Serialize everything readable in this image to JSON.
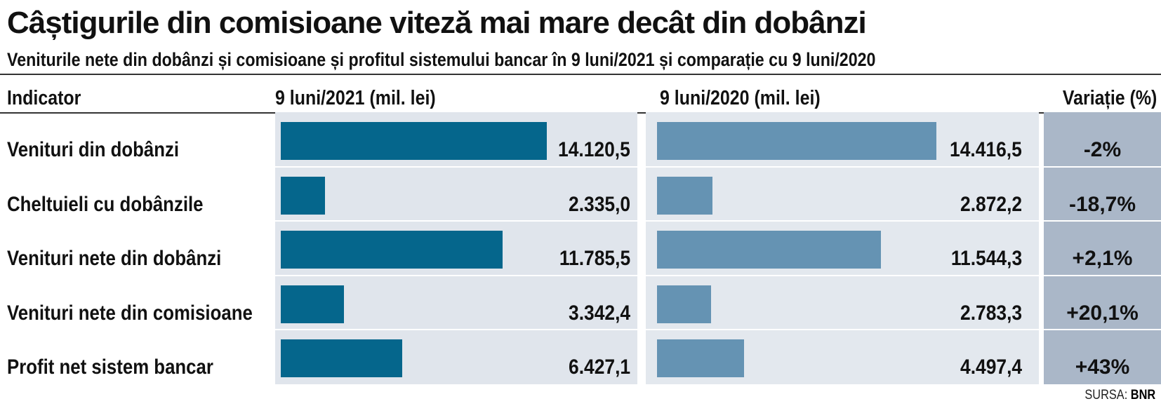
{
  "chart_data": {
    "type": "bar",
    "title": "Câștigurile din comisioane viteză mai mare decât din dobânzi",
    "subtitle": "Veniturile nete din dobânzi și comisioane și profitul sistemului bancar în 9 luni/2021 și comparație cu 9 luni/2020",
    "columns": {
      "indicator": "Indicator",
      "y2021": "9 luni/2021 (mil. lei)",
      "y2020": "9 luni/2020 (mil. lei)",
      "variation": "Variație (%)"
    },
    "categories": [
      "Venituri din dobânzi",
      "Cheltuieli cu dobânzile",
      "Venituri nete din dobânzi",
      "Venituri nete din comisioane",
      "Profit net sistem bancar"
    ],
    "series": [
      {
        "name": "9 luni/2021 (mil. lei)",
        "values": [
          14120.5,
          2335.0,
          11785.5,
          3342.4,
          6427.1
        ],
        "labels": [
          "14.120,5",
          "2.335,0",
          "11.785,5",
          "3.342,4",
          "6.427,1"
        ],
        "color": "#05668c"
      },
      {
        "name": "9 luni/2020 (mil. lei)",
        "values": [
          14416.5,
          2872.2,
          11544.3,
          2783.3,
          4497.4
        ],
        "labels": [
          "14.416,5",
          "2.872,2",
          "11.544,3",
          "2.783,3",
          "4.497,4"
        ],
        "color": "#6593b3"
      }
    ],
    "variation": [
      "-2%",
      "-18,7%",
      "+2,1%",
      "+20,1%",
      "+43%"
    ],
    "source_label": "SURSA:",
    "source": "BNR"
  }
}
